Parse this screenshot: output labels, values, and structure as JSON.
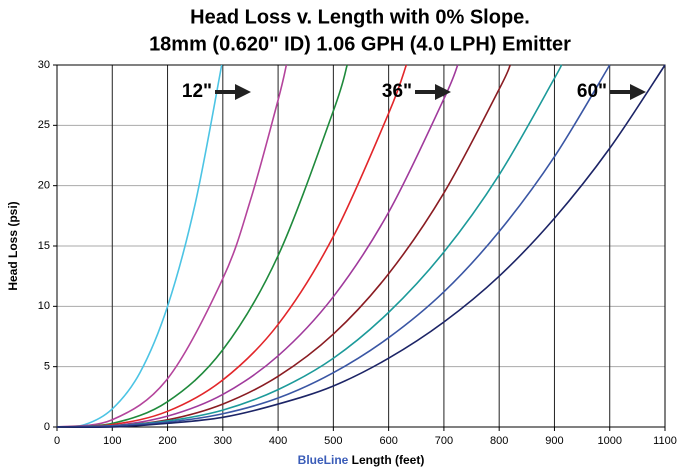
{
  "chart_data": {
    "type": "line",
    "title": "Head Loss v. Length with 0% Slope.",
    "subtitle": "18mm (0.620\" ID) 1.06 GPH (4.0 LPH) Emitter",
    "x_label_highlight": "BlueLine",
    "x_label": "Length (feet)",
    "y_label": "Head Loss (psi)",
    "annotations": [
      "12\"",
      "36\"",
      "60\""
    ],
    "xlim": [
      0,
      1100
    ],
    "xticks": [
      0,
      100,
      200,
      300,
      400,
      500,
      600,
      700,
      800,
      900,
      1000,
      1100
    ],
    "ylim": [
      0,
      30
    ],
    "yticks": [
      0,
      5,
      10,
      15,
      20,
      25,
      30
    ],
    "grid": true,
    "series": [
      {
        "color": "#4cc4e4",
        "x": [
          0,
          50,
          100,
          150,
          200,
          250,
          298
        ],
        "values": [
          0,
          0.2,
          1.5,
          4.5,
          10.0,
          18.5,
          30
        ]
      },
      {
        "color": "#b4449c",
        "x": [
          0,
          100,
          200,
          300,
          350,
          400,
          415
        ],
        "values": [
          0,
          0.6,
          4.0,
          12.3,
          18.8,
          27.1,
          30
        ]
      },
      {
        "color": "#1f8a3c",
        "x": [
          0,
          100,
          200,
          300,
          400,
          500,
          525
        ],
        "values": [
          0,
          0.3,
          2.1,
          6.4,
          14.2,
          26.2,
          30
        ]
      },
      {
        "color": "#e2262a",
        "x": [
          0,
          100,
          200,
          300,
          400,
          500,
          600,
          632
        ],
        "values": [
          0,
          0.2,
          1.3,
          3.9,
          8.5,
          15.8,
          26.0,
          30
        ]
      },
      {
        "color": "#a03a9c",
        "x": [
          0,
          100,
          200,
          300,
          400,
          500,
          600,
          700,
          725
        ],
        "values": [
          0,
          0.1,
          0.9,
          2.7,
          5.9,
          10.8,
          17.8,
          27.2,
          30
        ]
      },
      {
        "color": "#8a1c22",
        "x": [
          0,
          100,
          200,
          300,
          400,
          500,
          600,
          700,
          800,
          820
        ],
        "values": [
          0,
          0.1,
          0.6,
          1.9,
          4.2,
          7.7,
          12.7,
          19.4,
          28.0,
          30
        ]
      },
      {
        "color": "#1c9a9a",
        "x": [
          0,
          100,
          200,
          300,
          400,
          500,
          600,
          700,
          800,
          900,
          912
        ],
        "values": [
          0,
          0.1,
          0.5,
          1.4,
          3.1,
          5.7,
          9.5,
          14.5,
          20.9,
          28.9,
          30
        ]
      },
      {
        "color": "#3a56a4",
        "x": [
          0,
          100,
          200,
          300,
          400,
          500,
          600,
          700,
          800,
          900,
          1000
        ],
        "values": [
          0,
          0.1,
          0.4,
          1.1,
          2.4,
          4.5,
          7.4,
          11.2,
          16.2,
          22.4,
          30
        ]
      },
      {
        "color": "#1c2466",
        "x": [
          0,
          100,
          200,
          300,
          400,
          500,
          600,
          700,
          800,
          900,
          1000,
          1100
        ],
        "values": [
          0,
          0.0,
          0.3,
          0.8,
          1.9,
          3.4,
          5.7,
          8.7,
          12.5,
          17.3,
          23.1,
          30
        ]
      }
    ]
  }
}
